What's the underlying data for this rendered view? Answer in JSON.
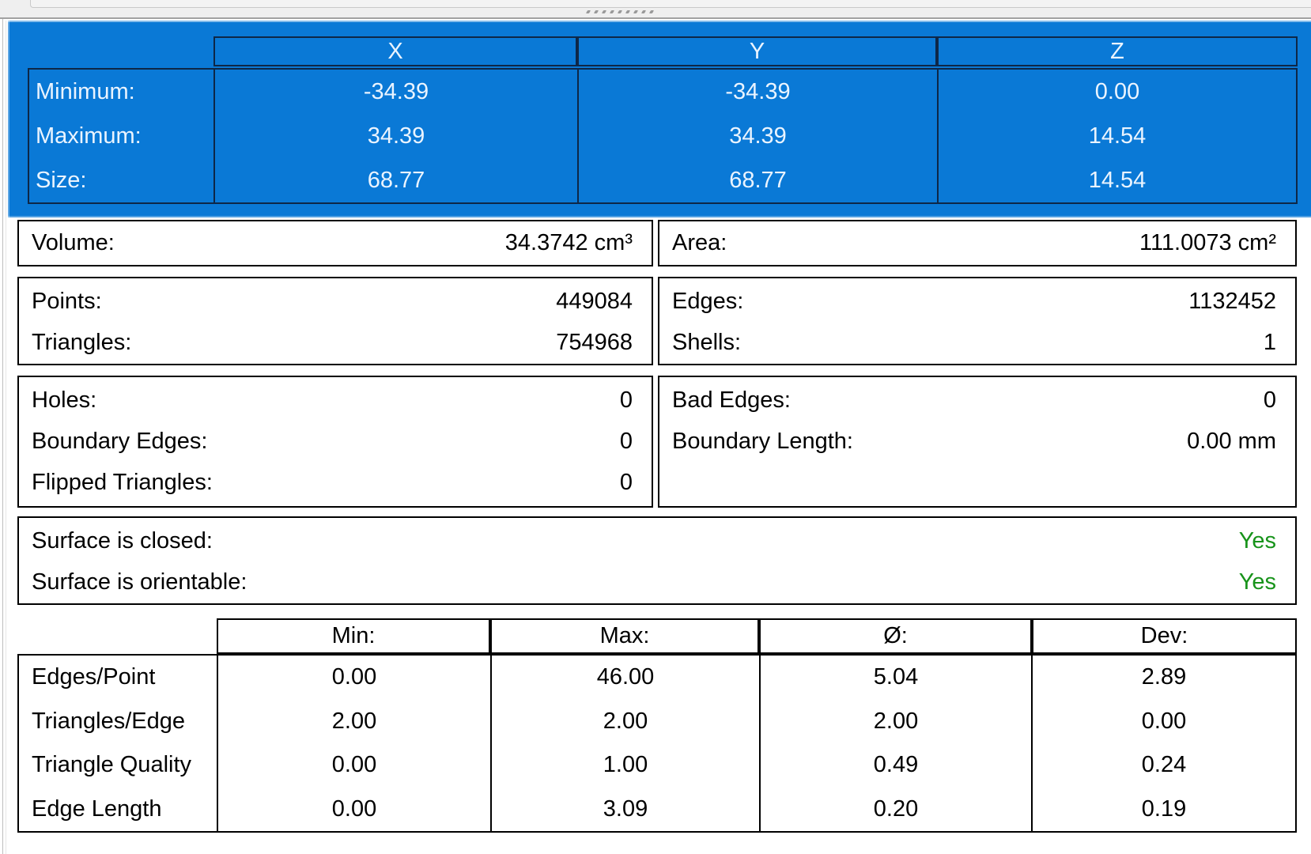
{
  "colors": {
    "accent_blue": "#0a79d6",
    "bounds_border": "#0e2747",
    "box_border": "#000000",
    "yes_green": "#17931a"
  },
  "bounds": {
    "columns": [
      "X",
      "Y",
      "Z"
    ],
    "rows": [
      {
        "label": "Minimum:",
        "values": [
          "-34.39",
          "-34.39",
          "0.00"
        ]
      },
      {
        "label": "Maximum:",
        "values": [
          "34.39",
          "34.39",
          "14.54"
        ]
      },
      {
        "label": "Size:",
        "values": [
          "68.77",
          "68.77",
          "14.54"
        ]
      }
    ]
  },
  "volume_area": {
    "volume": {
      "label": "Volume:",
      "value": "34.3742 cm³"
    },
    "area": {
      "label": "Area:",
      "value": "111.0073 cm²"
    }
  },
  "counts": {
    "points": {
      "label": "Points:",
      "value": "449084"
    },
    "triangles": {
      "label": "Triangles:",
      "value": "754968"
    },
    "edges": {
      "label": "Edges:",
      "value": "1132452"
    },
    "shells": {
      "label": "Shells:",
      "value": "1"
    }
  },
  "defects": {
    "holes": {
      "label": "Holes:",
      "value": "0"
    },
    "boundary_edges": {
      "label": "Boundary Edges:",
      "value": "0"
    },
    "flipped_triangles": {
      "label": "Flipped Triangles:",
      "value": "0"
    },
    "bad_edges": {
      "label": "Bad Edges:",
      "value": "0"
    },
    "boundary_length": {
      "label": "Boundary Length:",
      "value": "0.00 mm"
    }
  },
  "surface": {
    "closed": {
      "label": "Surface is closed:",
      "value": "Yes"
    },
    "orientable": {
      "label": "Surface is orientable:",
      "value": "Yes"
    }
  },
  "quality": {
    "columns": [
      "Min:",
      "Max:",
      "Ø:",
      "Dev:"
    ],
    "rows": [
      {
        "label": "Edges/Point",
        "values": [
          "0.00",
          "46.00",
          "5.04",
          "2.89"
        ]
      },
      {
        "label": "Triangles/Edge",
        "values": [
          "2.00",
          "2.00",
          "2.00",
          "0.00"
        ]
      },
      {
        "label": "Triangle Quality",
        "values": [
          "0.00",
          "1.00",
          "0.49",
          "0.24"
        ]
      },
      {
        "label": "Edge Length",
        "values": [
          "0.00",
          "3.09",
          "0.20",
          "0.19"
        ]
      }
    ]
  }
}
